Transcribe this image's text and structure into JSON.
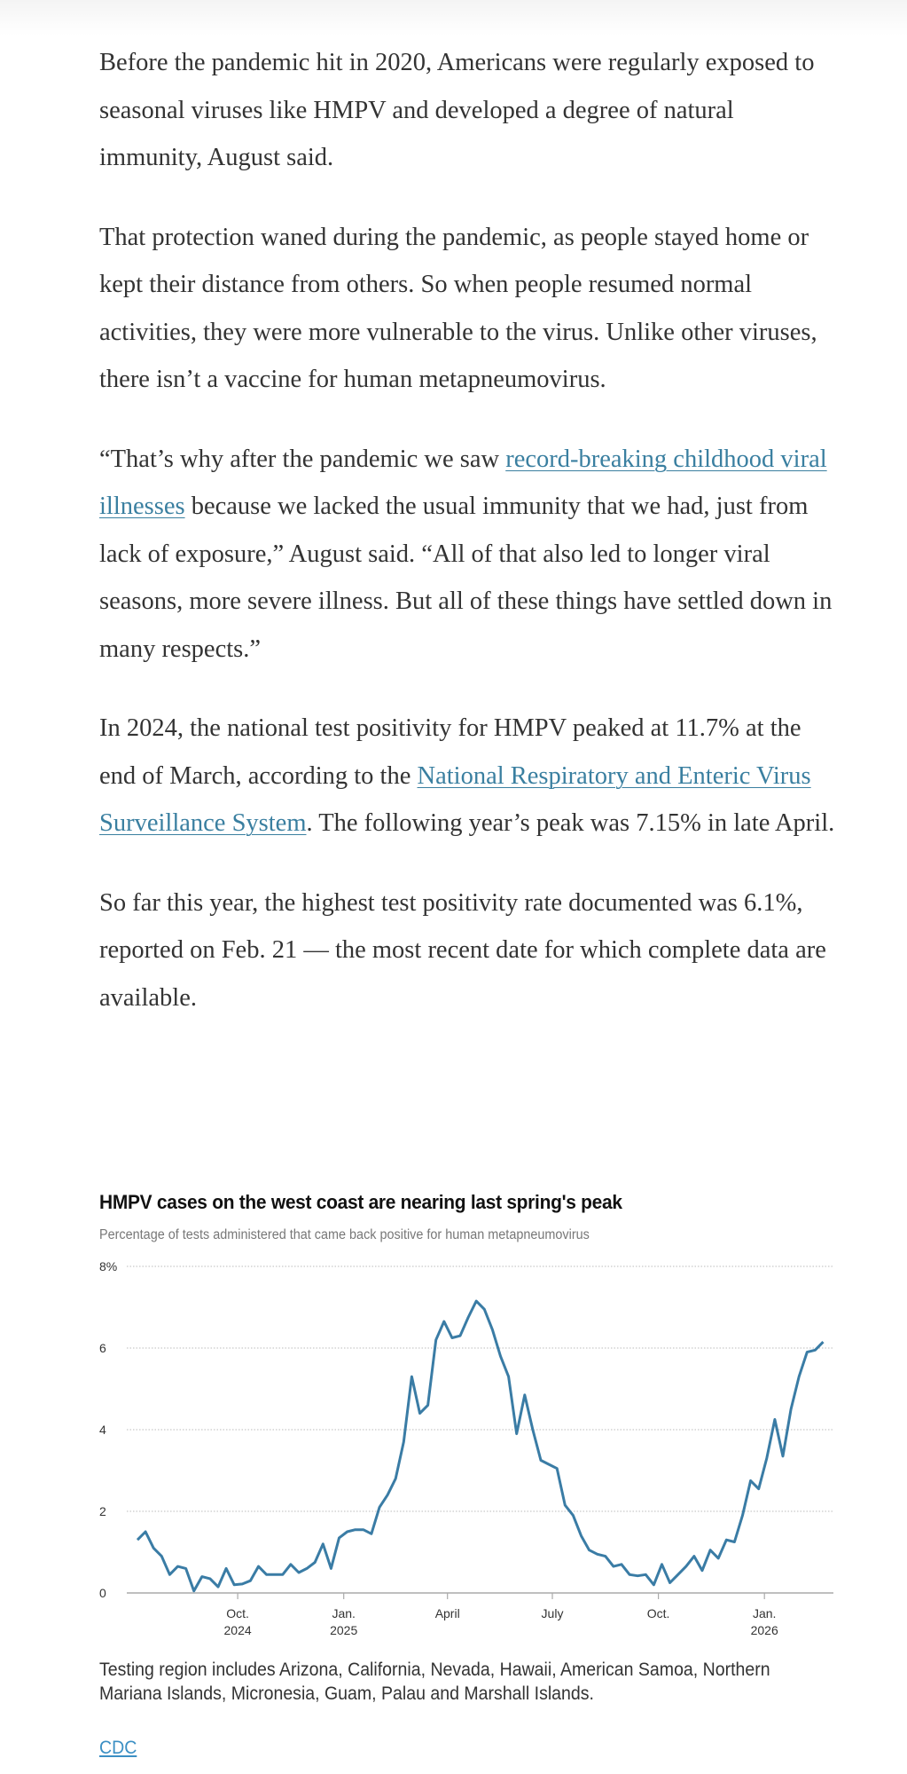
{
  "article": {
    "p1": "Before the pandemic hit in 2020, Americans were regularly exposed to seasonal viruses like HMPV and developed a degree of natural immunity, August said.",
    "p2": "That protection waned during the pandemic, as people stayed home or kept their distance from others. So when people resumed normal activities, they were more vulnerable to the virus. Unlike other viruses, there isn’t a vaccine for human metapneumovirus.",
    "p3_before": "“That’s why after the pandemic we saw ",
    "p3_link": "record-breaking childhood viral illnesses",
    "p3_after": " because we lacked the usual immunity that we had, just from lack of exposure,” August said. “All of that also led to longer viral seasons, more severe illness. But all of these things have settled down in many respects.”",
    "p4_before": "In 2024, the national test positivity for HMPV peaked at 11.7% at the end of March, according to the ",
    "p4_link": "National Respiratory and Enteric Virus Surveillance System",
    "p4_after": ". The following year’s peak was 7.15% in late April.",
    "p5": "So far this year, the highest test positivity rate documented was 6.1%, reported on Feb. 21 — the most recent date for which complete data are available.",
    "link_color": "#3a7fa0"
  },
  "chart_data": {
    "type": "line",
    "title": "HMPV cases on the west coast are nearing last spring's peak",
    "subtitle": "Percentage of tests administered that came back positive for human metapneumovirus",
    "ylim": [
      0,
      8
    ],
    "yticks": [
      {
        "value": 0,
        "label": "0"
      },
      {
        "value": 2,
        "label": "2"
      },
      {
        "value": 4,
        "label": "4"
      },
      {
        "value": 6,
        "label": "6"
      },
      {
        "value": 8,
        "label": "8%"
      }
    ],
    "xticks": [
      {
        "date": "2024-10-01",
        "label": "Oct.",
        "sub": "2024"
      },
      {
        "date": "2025-01-01",
        "label": "Jan.",
        "sub": "2025"
      },
      {
        "date": "2025-04-01",
        "label": "April",
        "sub": ""
      },
      {
        "date": "2025-07-01",
        "label": "July",
        "sub": ""
      },
      {
        "date": "2025-10-01",
        "label": "Oct.",
        "sub": ""
      },
      {
        "date": "2026-01-01",
        "label": "Jan.",
        "sub": "2026"
      }
    ],
    "grid": "horizontal dotted",
    "line_color": "#3a7ca5",
    "x": [
      "2024-07-06",
      "2024-07-13",
      "2024-07-20",
      "2024-07-27",
      "2024-08-03",
      "2024-08-10",
      "2024-08-17",
      "2024-08-24",
      "2024-08-31",
      "2024-09-07",
      "2024-09-14",
      "2024-09-21",
      "2024-09-28",
      "2024-10-05",
      "2024-10-12",
      "2024-10-19",
      "2024-10-26",
      "2024-11-02",
      "2024-11-09",
      "2024-11-16",
      "2024-11-23",
      "2024-11-30",
      "2024-12-07",
      "2024-12-14",
      "2024-12-21",
      "2024-12-28",
      "2025-01-04",
      "2025-01-11",
      "2025-01-18",
      "2025-01-25",
      "2025-02-01",
      "2025-02-08",
      "2025-02-15",
      "2025-02-22",
      "2025-03-01",
      "2025-03-08",
      "2025-03-15",
      "2025-03-22",
      "2025-03-29",
      "2025-04-05",
      "2025-04-12",
      "2025-04-19",
      "2025-04-26",
      "2025-05-03",
      "2025-05-10",
      "2025-05-17",
      "2025-05-24",
      "2025-05-31",
      "2025-06-07",
      "2025-06-14",
      "2025-06-21",
      "2025-06-28",
      "2025-07-05",
      "2025-07-12",
      "2025-07-19",
      "2025-07-26",
      "2025-08-02",
      "2025-08-09",
      "2025-08-16",
      "2025-08-23",
      "2025-08-30",
      "2025-09-06",
      "2025-09-13",
      "2025-09-20",
      "2025-09-27",
      "2025-10-04",
      "2025-10-11",
      "2025-10-18",
      "2025-10-25",
      "2025-11-01",
      "2025-11-08",
      "2025-11-15",
      "2025-11-22",
      "2025-11-29",
      "2025-12-06",
      "2025-12-13",
      "2025-12-20",
      "2025-12-27",
      "2026-01-03",
      "2026-01-10",
      "2026-01-17",
      "2026-01-24",
      "2026-01-31",
      "2026-02-07",
      "2026-02-14",
      "2026-02-21"
    ],
    "y": [
      1.3,
      1.5,
      1.1,
      0.9,
      0.45,
      0.65,
      0.6,
      0.05,
      0.4,
      0.35,
      0.15,
      0.6,
      0.2,
      0.22,
      0.3,
      0.65,
      0.45,
      0.45,
      0.45,
      0.7,
      0.5,
      0.6,
      0.75,
      1.2,
      0.6,
      1.35,
      1.5,
      1.55,
      1.55,
      1.45,
      2.1,
      2.4,
      2.8,
      3.7,
      5.3,
      4.4,
      4.6,
      6.2,
      6.65,
      6.25,
      6.3,
      6.75,
      7.15,
      6.95,
      6.45,
      5.8,
      5.3,
      3.9,
      4.85,
      4.0,
      3.25,
      3.15,
      3.05,
      2.15,
      1.9,
      1.4,
      1.05,
      0.95,
      0.9,
      0.65,
      0.7,
      0.45,
      0.42,
      0.45,
      0.2,
      0.7,
      0.25,
      0.45,
      0.65,
      0.9,
      0.55,
      1.05,
      0.85,
      1.3,
      1.25,
      1.9,
      2.75,
      2.55,
      3.3,
      4.25,
      3.35,
      4.5,
      5.3,
      5.9,
      5.95,
      6.15
    ]
  },
  "caption": "Testing region includes Arizona, California, Nevada, Hawaii, American Samoa, Northern Mariana Islands, Micronesia, Guam, Palau and Marshall Islands.",
  "source": "CDC"
}
